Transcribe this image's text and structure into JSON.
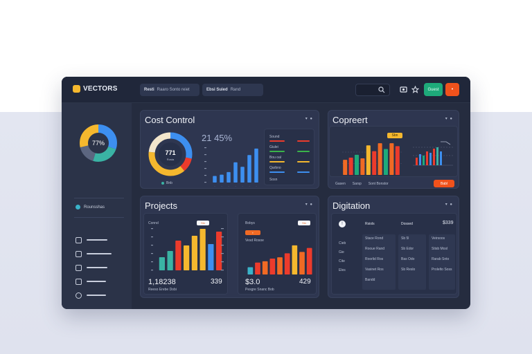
{
  "app": {
    "logo_text": "VECTORS"
  },
  "topbar": {
    "tab1_bold": "Resti",
    "tab1_rest": "Raaro Sonto reiet",
    "tab2_bold": "Ebsi Suied",
    "tab2_rest": "Rand",
    "primary_button": "Guest",
    "search_icon": "search-icon",
    "icons": [
      "camera-icon",
      "star-icon"
    ]
  },
  "colors": {
    "blue": "#3d8ff0",
    "yellow": "#f5b82e",
    "teal": "#3ab3a4",
    "red": "#ec3b2c",
    "orange": "#f06a24",
    "green": "#1eaa7a"
  },
  "sidebar": {
    "donut_label": "77%",
    "status_text": "Rounsshas",
    "nav_items": [
      "doc-icon",
      "grid-icon",
      "image-icon",
      "chart-icon",
      "settings-icon"
    ]
  },
  "cost_control": {
    "title": "Cost Control",
    "donut_value": "771",
    "donut_sub": "Rosta",
    "donut_legend": "Bnb",
    "headline": "21 45%",
    "legend_rows": [
      {
        "label": "Sound",
        "color": "#ec3b2c"
      },
      {
        "label": "Giulei",
        "color": "#3ab34a"
      },
      {
        "label": "Bou oal",
        "color": "#f5b82e"
      },
      {
        "label": "Qarbno",
        "color": "#3d8ff0"
      }
    ],
    "footer": "Sosn"
  },
  "copert": {
    "title": "Copreert",
    "badge": "Sbn",
    "footer_labels": [
      "Gasen",
      "Sarsp",
      "Sont Bonstor"
    ],
    "button": "Babl"
  },
  "projects": {
    "title": "Projects",
    "left_panel": {
      "label": "Connd",
      "badge": "Sin",
      "big": "1,18238",
      "right_big": "339",
      "caption": "Reeso Erebe Dobi"
    },
    "right_panel": {
      "label": "Bobys",
      "badge": "Sin",
      "sub": "Vesd Rosoe",
      "big": "$3.0",
      "right_big": "429",
      "caption": "Pesgre Snanc Bob"
    }
  },
  "digitation": {
    "title": "Digitation",
    "header_left": "Rsiols",
    "header_mid": "Dossed",
    "header_right": "$339",
    "left_col": [
      "Cieb",
      "Gie",
      "Cite",
      "Eles"
    ],
    "rows": [
      [
        "Stace Rond",
        "Sb 5l",
        "Veirsoos"
      ],
      [
        "Rooue Rand",
        "Sb Edor",
        "Stisb Mosl"
      ],
      [
        "Roorlid Ros",
        "Bas Odo",
        "Rarab Snto"
      ],
      [
        "Vasinet Ros",
        "Sb Reslo",
        "Prolelto Soss"
      ],
      [
        "Bandd",
        "",
        ""
      ]
    ]
  },
  "chart_data": [
    {
      "type": "bar",
      "title": "",
      "series": [
        {
          "values": [
            1,
            1.2,
            1.6,
            3.1,
            2.4,
            4.2,
            5.2
          ]
        }
      ],
      "colors": [
        "#3d8ff0"
      ]
    },
    {
      "type": "bar",
      "title": "",
      "series": [
        {
          "values": [
            2.1,
            2.4,
            2.8,
            2.3,
            4.1,
            3.3,
            4.4,
            3.6,
            4.4,
            4.0
          ]
        }
      ],
      "colors": [
        "#f06a24",
        "#ec3b2c",
        "#1eaa7a",
        "#f06a24",
        "#f5b82e",
        "#ec3b2c",
        "#f06a24",
        "#1eaa7a",
        "#f06a24",
        "#ec3b2c"
      ]
    },
    {
      "type": "bar",
      "title": "",
      "series": [
        {
          "values": [
            1.9,
            2.8,
            4.3,
            3.6,
            5.0,
            6.0,
            3.8,
            5.6
          ]
        }
      ],
      "colors": [
        "#3ab3a4",
        "#3ab3a4",
        "#ec3b2c",
        "#f5b82e",
        "#f5b82e",
        "#f5b82e",
        "#3d8ff0",
        "#ec3b2c"
      ]
    },
    {
      "type": "bar",
      "title": "",
      "series": [
        {
          "values": [
            1.1,
            1.8,
            2.0,
            2.4,
            2.6,
            3.2,
            4.4,
            3.4,
            4.0
          ]
        }
      ],
      "colors": [
        "#3ab3c9",
        "#ec3b2c",
        "#f06a24",
        "#ec3b2c",
        "#f06a24",
        "#ec3b2c",
        "#f5b82e",
        "#f06a24",
        "#ec3b2c"
      ]
    }
  ]
}
